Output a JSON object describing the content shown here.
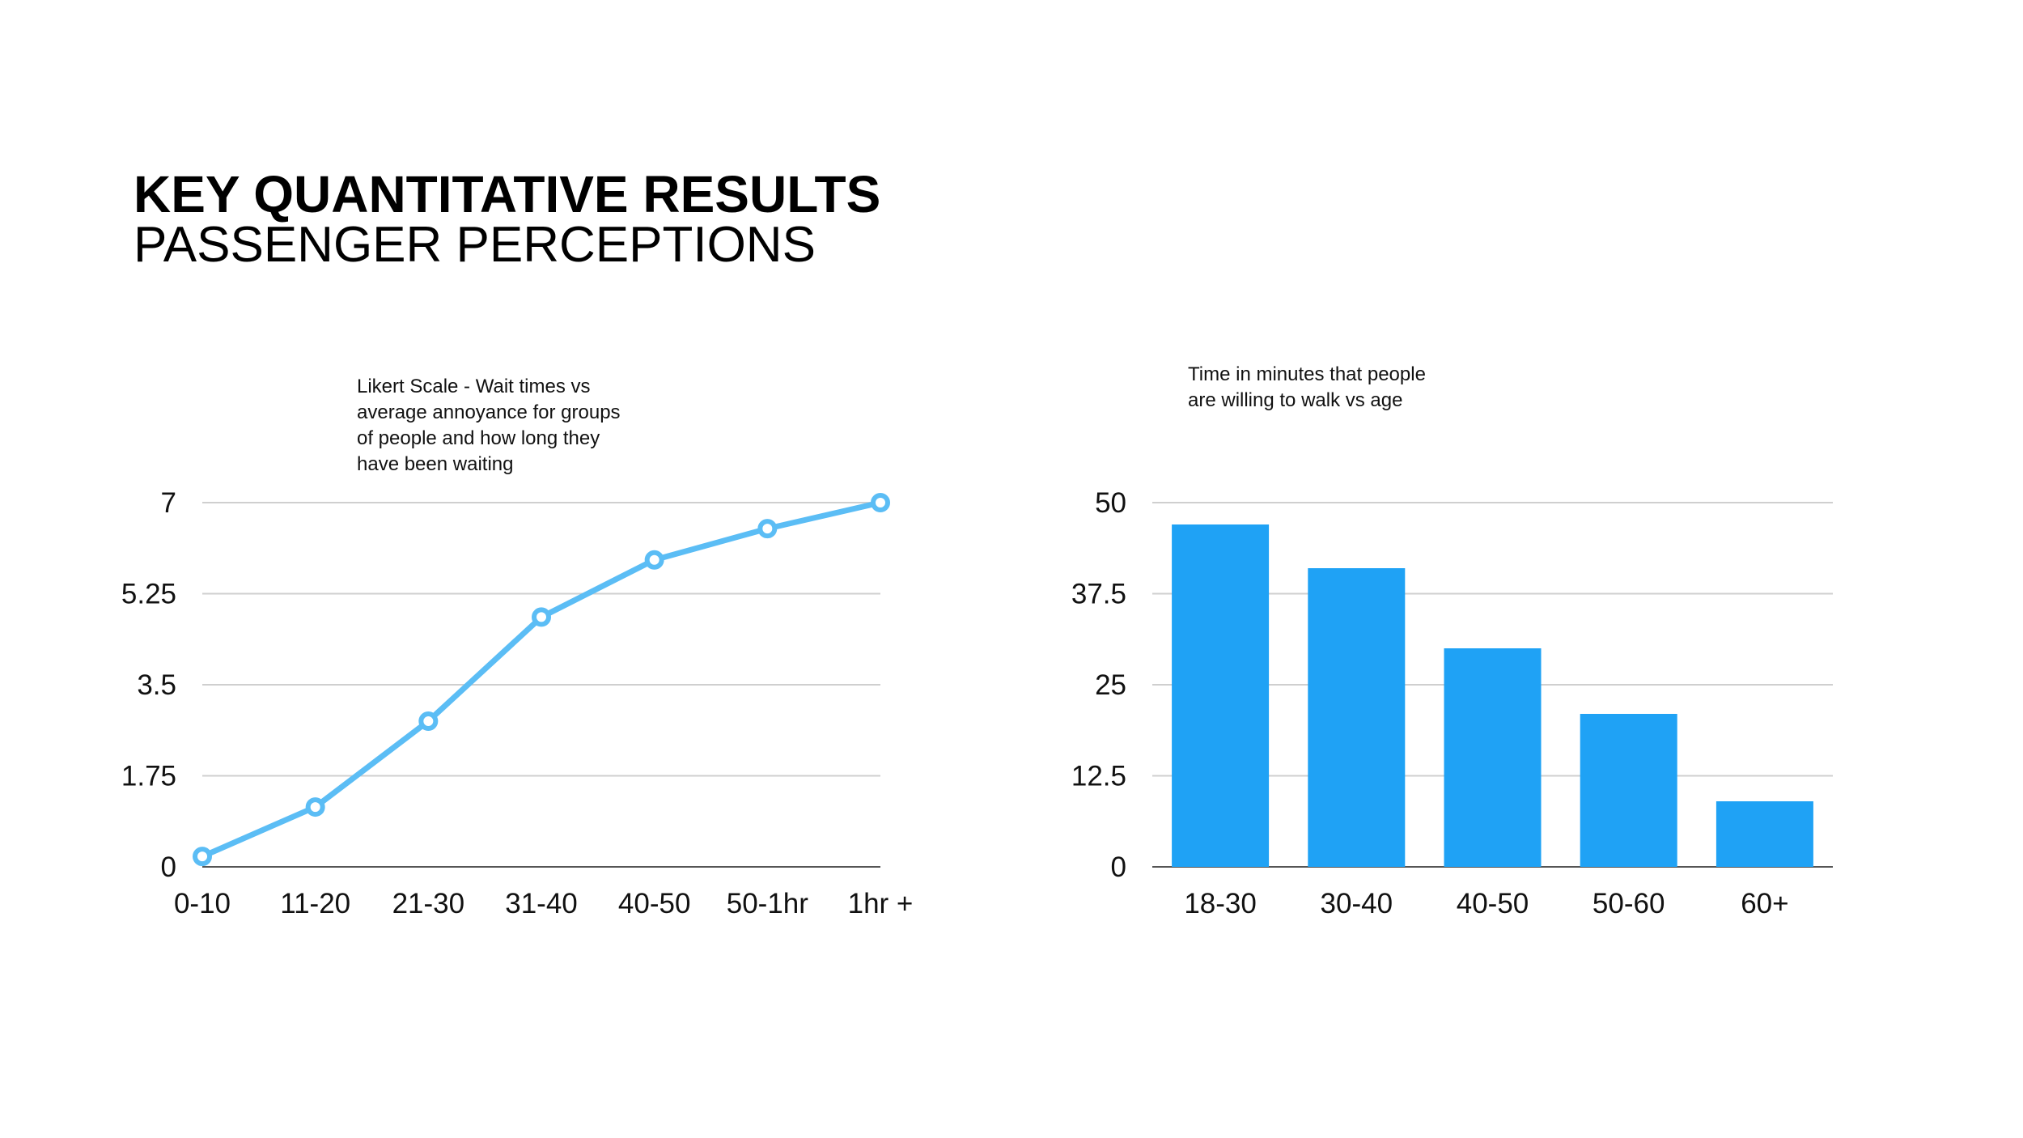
{
  "slide": {
    "title": "KEY QUANTITATIVE RESULTS",
    "subtitle": "PASSENGER PERCEPTIONS"
  },
  "chart_data": [
    {
      "type": "line",
      "caption": "Likert Scale - Wait times vs\naverage annoyance for groups\nof people and how long they\nhave been waiting",
      "categories": [
        "0-10",
        "11-20",
        "21-30",
        "31-40",
        "40-50",
        "50-1hr",
        "1hr +"
      ],
      "series": [
        {
          "values": [
            0.2,
            1.15,
            2.8,
            4.8,
            5.9,
            6.5,
            7.0
          ]
        }
      ],
      "yticks": [
        "0",
        "1.75",
        "3.5",
        "5.25",
        "7"
      ],
      "ylim": [
        0,
        7
      ],
      "grid": true,
      "color": "#5BBDF5"
    },
    {
      "type": "bar",
      "caption": "Time in minutes that people\nare willing to walk vs age",
      "categories": [
        "18-30",
        "30-40",
        "40-50",
        "50-60",
        "60+"
      ],
      "values": [
        47,
        41,
        30,
        21,
        9
      ],
      "yticks": [
        "0",
        "12.5",
        "25",
        "37.5",
        "50"
      ],
      "ylim": [
        0,
        50
      ],
      "grid": true,
      "color": "#1FA2F5"
    }
  ]
}
